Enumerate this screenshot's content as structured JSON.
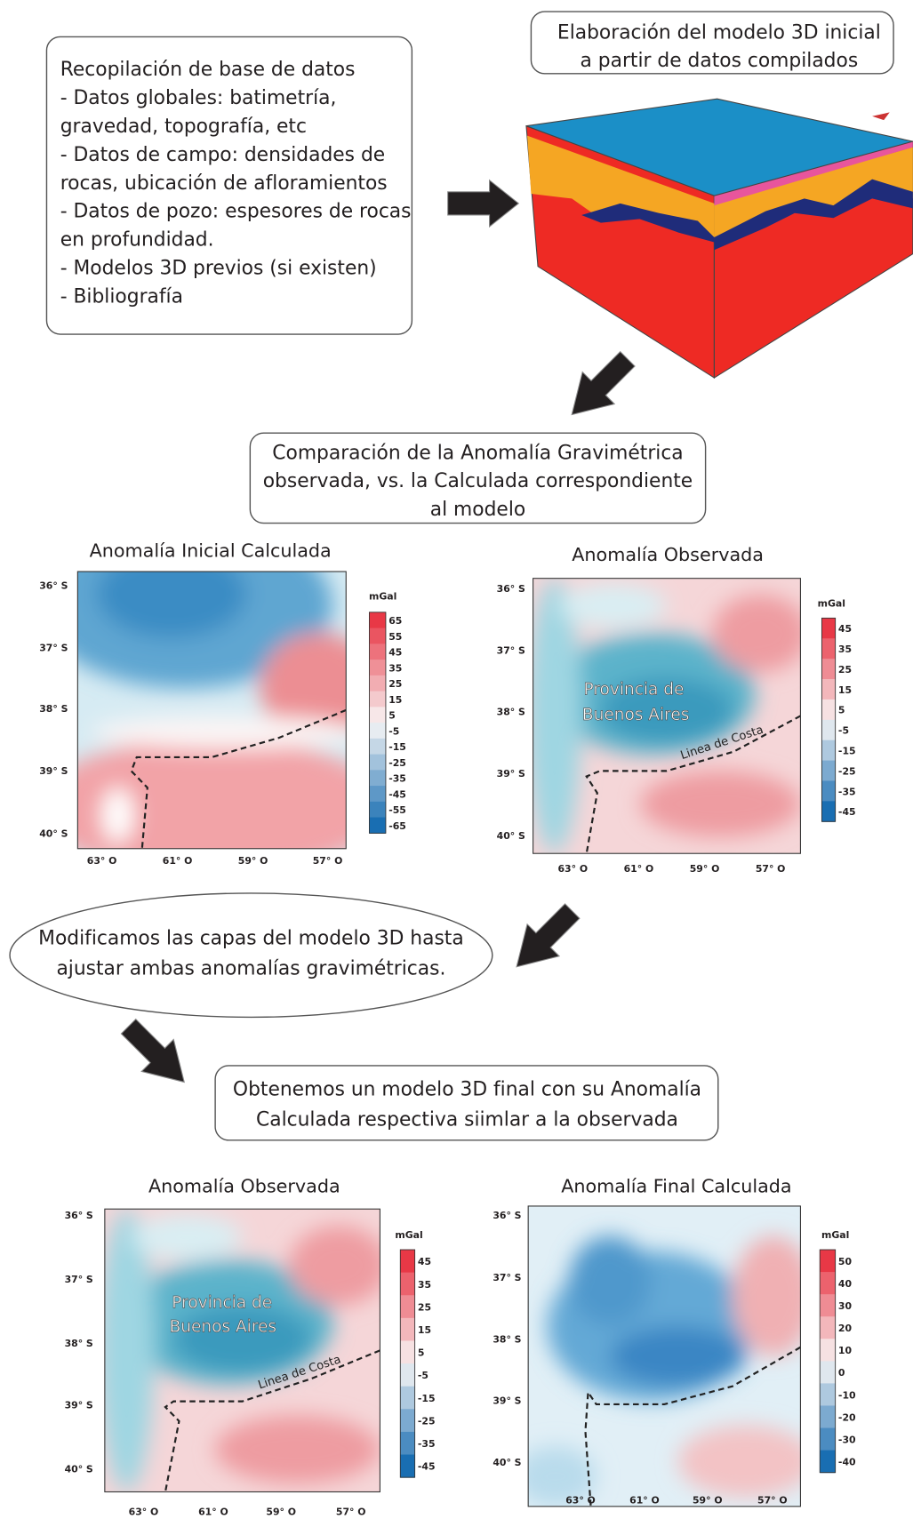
{
  "intro_box": {
    "lines": [
      "Recopilación de base de datos",
      "- Datos globales: batimetría,",
      "gravedad, topografía, etc",
      "- Datos de campo: densidades de",
      "rocas, ubicación de afloramientos",
      "- Datos de pozo: espesores de rocas",
      "en profundidad.",
      "- Modelos 3D previos (si existen)",
      "- Bibliografía"
    ]
  },
  "model_box": {
    "lines": [
      "Elaboración del modelo 3D inicial",
      "a partir de datos compilados"
    ]
  },
  "comparison_box": {
    "lines": [
      "Comparación de la Anomalía Gravimétrica",
      "observada, vs. la Calculada correspondiente",
      "al modelo"
    ]
  },
  "modify_box": {
    "lines": [
      "Modificamos las capas del modelo 3D hasta",
      "ajustar ambas anomalías gravimétricas."
    ]
  },
  "final_box": {
    "lines": [
      "Obtenemos un modelo 3D final con su Anomalía",
      "Calculada respectiva siimlar a la observada"
    ]
  },
  "maps": [
    {
      "title": "Anomalía Inicial Calculada",
      "unit": "mGal",
      "lat_labels": [
        "36° S",
        "37° S",
        "38° S",
        "39° S",
        "40° S"
      ],
      "lon_labels": [
        "63° O",
        "61° O",
        "59° O",
        "57° O"
      ],
      "scale_labels": [
        65,
        55,
        45,
        35,
        25,
        15,
        5,
        -5,
        -15,
        -25,
        -35,
        -45,
        -55,
        -65
      ]
    },
    {
      "title": "Anomalía Observada",
      "unit": "mGal",
      "lat_labels": [
        "36° S",
        "37° S",
        "38° S",
        "39° S",
        "40° S"
      ],
      "lon_labels": [
        "63° O",
        "61° O",
        "59° O",
        "57° O"
      ],
      "scale_labels": [
        45,
        35,
        25,
        15,
        5,
        -5,
        -15,
        -25,
        -35,
        -45
      ],
      "annotations": [
        "Provincia de",
        "Buenos Aires",
        "Linea de Costa"
      ]
    },
    {
      "title": "Anomalía Observada",
      "unit": "mGal",
      "lat_labels": [
        "36° S",
        "37° S",
        "38° S",
        "39° S",
        "40° S"
      ],
      "lon_labels": [
        "63° O",
        "61° O",
        "59° O",
        "57° O"
      ],
      "scale_labels": [
        45,
        35,
        25,
        15,
        5,
        -5,
        -15,
        -25,
        -35,
        -45
      ],
      "annotations": [
        "Provincia de",
        "Buenos Aires",
        "Linea de Costa"
      ]
    },
    {
      "title": "Anomalía Final Calculada",
      "unit": "mGal",
      "lat_labels": [
        "36° S",
        "37° S",
        "38° S",
        "39° S",
        "40° S"
      ],
      "lon_labels": [
        "63° O",
        "61° O",
        "59° O",
        "57° O"
      ],
      "scale_labels": [
        50,
        40,
        30,
        20,
        10,
        0,
        -10,
        -20,
        -30,
        -40
      ]
    }
  ]
}
